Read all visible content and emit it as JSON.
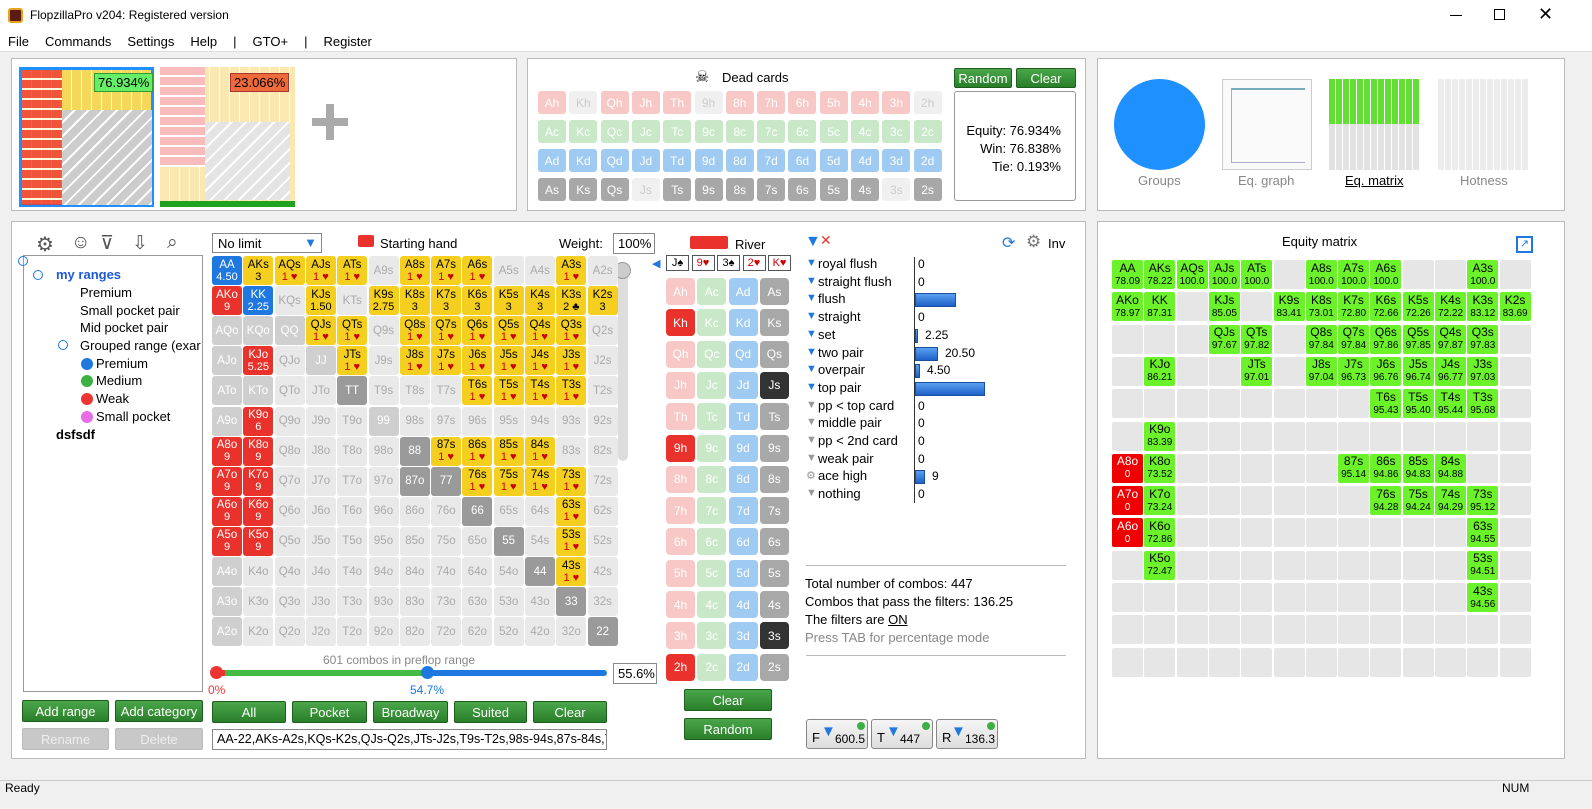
{
  "app": {
    "title": "FlopzillaPro v204: Registered version"
  },
  "menu": [
    "File",
    "Commands",
    "Settings",
    "Help",
    "|",
    "GTO+",
    "|",
    "Register"
  ],
  "players": {
    "p1_pct": "76.934%",
    "p2_pct": "23.066%"
  },
  "dead": {
    "title": "Dead cards",
    "random": "Random",
    "clear": "Clear",
    "rows": [
      [
        "Ah",
        "Kh",
        "Qh",
        "Jh",
        "Th",
        "9h",
        "8h",
        "7h",
        "6h",
        "5h",
        "4h",
        "3h",
        "2h"
      ],
      [
        "Ac",
        "Kc",
        "Qc",
        "Jc",
        "Tc",
        "9c",
        "8c",
        "7c",
        "6c",
        "5c",
        "4c",
        "3c",
        "2c"
      ],
      [
        "Ad",
        "Kd",
        "Qd",
        "Jd",
        "Td",
        "9d",
        "8d",
        "7d",
        "6d",
        "5d",
        "4d",
        "3d",
        "2d"
      ],
      [
        "As",
        "Ks",
        "Qs",
        "Js",
        "Ts",
        "9s",
        "8s",
        "7s",
        "6s",
        "5s",
        "4s",
        "3s",
        "2s"
      ]
    ],
    "equity": "Equity: 76.934%",
    "win": "Win: 76.838%",
    "tie": "Tie: 0.193%"
  },
  "views": {
    "groups": "Groups",
    "eqgraph": "Eq. graph",
    "eqmatrix": "Eq. matrix",
    "hotness": "Hotness"
  },
  "tree": {
    "root": "my ranges",
    "items": [
      "Premium",
      "Small pocket pair",
      "Mid pocket pair",
      "Grouped range (exar"
    ],
    "sub": [
      "Premium",
      "Medium",
      "Weak",
      "Small pocket"
    ],
    "other": "dsfsdf"
  },
  "left_buttons": {
    "add_range": "Add range",
    "add_category": "Add category",
    "rename": "Rename",
    "delete": "Delete"
  },
  "range": {
    "limit": "No limit",
    "starting_hand": "Starting hand",
    "weight_label": "Weight:",
    "weight": "100%",
    "combos_text": "601 combos in preflop range",
    "pct_left": "0%",
    "pct_mid": "54.7%",
    "pct_right": "55.6%",
    "text": "AA-22,AKs-A2s,KQs-K2s,QJs-Q2s,JTs-J2s,T9s-T2s,98s-94s,87s-84s,7",
    "buttons": [
      "All",
      "Pocket",
      "Broadway",
      "Suited",
      "Clear"
    ]
  },
  "board": {
    "label": "River",
    "cards": [
      "J♠",
      "9♥",
      "3♠",
      "2♥",
      "K♥"
    ],
    "clear": "Clear",
    "random": "Random"
  },
  "filters": {
    "inv": "Inv",
    "items": [
      [
        "royal flush",
        "0"
      ],
      [
        "straight flush",
        "0"
      ],
      [
        "flush",
        "37"
      ],
      [
        "straight",
        "0"
      ],
      [
        "set",
        "2.25"
      ],
      [
        "two pair",
        "20.50"
      ],
      [
        "overpair",
        "4.50"
      ],
      [
        "top pair",
        "63"
      ],
      [
        "pp < top card",
        "0"
      ],
      [
        "middle pair",
        "0"
      ],
      [
        "pp < 2nd card",
        "0"
      ],
      [
        "weak pair",
        "0"
      ],
      [
        "ace high",
        "9"
      ],
      [
        "nothing",
        "0"
      ]
    ],
    "total": "Total number of combos: 447",
    "pass": "Combos that pass the filters: 136.25",
    "on_prefix": "The filters are ",
    "on": "ON",
    "tab": "Press TAB for percentage mode",
    "chips": [
      [
        "F",
        "600.5"
      ],
      [
        "T",
        "447"
      ],
      [
        "R",
        "136.3"
      ]
    ]
  },
  "eqmatrix": {
    "title": "Equity matrix"
  },
  "status": {
    "ready": "Ready",
    "num": "NUM"
  },
  "colors": {
    "green": "#2e8b2e",
    "yellow": "#f5cf1f",
    "red": "#e8322b",
    "blue": "#1e78e0",
    "lime": "#66ee22"
  }
}
